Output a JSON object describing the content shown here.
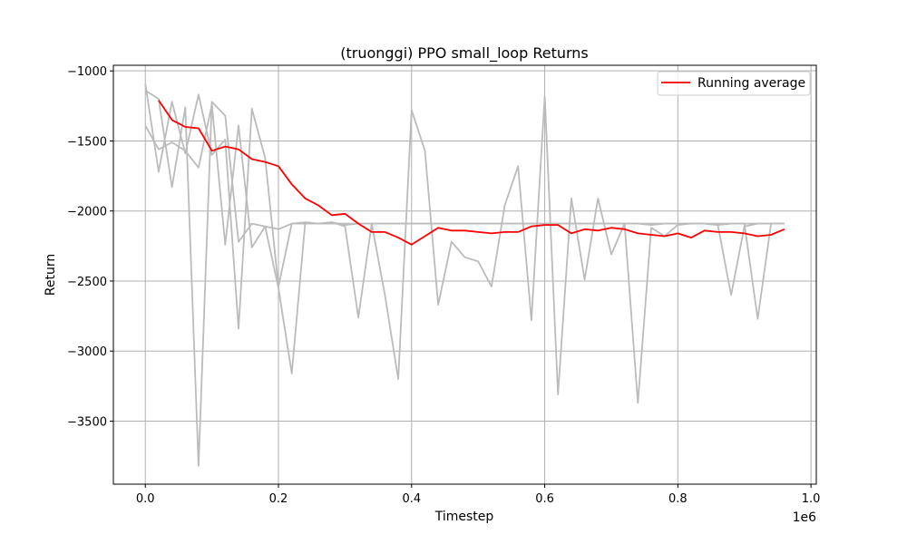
{
  "chart_data": {
    "type": "line",
    "title": "(truonggi) PPO small_loop Returns",
    "xlabel": "Timestep",
    "ylabel": "Return",
    "x_offset_label": "1e6",
    "xlim": [
      -0.048,
      1.008
    ],
    "ylim": [
      -3950,
      -960
    ],
    "xticks": [
      0.0,
      0.2,
      0.4,
      0.6,
      0.8,
      1.0
    ],
    "xtick_labels": [
      "0.0",
      "0.2",
      "0.4",
      "0.6",
      "0.8",
      "1.0"
    ],
    "yticks": [
      -1000,
      -1500,
      -2000,
      -2500,
      -3000,
      -3500
    ],
    "ytick_labels": [
      "−1000",
      "−1500",
      "−2000",
      "−2500",
      "−3000",
      "−3500"
    ],
    "grid": true,
    "legend_position": "top-right",
    "colors": {
      "raw": "#bbbbbb",
      "average": "#ff0000",
      "grid": "#b0b0b0"
    },
    "raw_x": [
      0.0,
      0.02,
      0.04,
      0.06,
      0.08,
      0.1,
      0.12,
      0.14,
      0.16,
      0.18,
      0.2,
      0.22,
      0.24,
      0.26,
      0.28,
      0.3,
      0.32,
      0.34,
      0.36,
      0.38,
      0.4,
      0.42,
      0.44,
      0.46,
      0.48,
      0.5,
      0.52,
      0.54,
      0.56,
      0.58,
      0.6,
      0.62,
      0.64,
      0.66,
      0.68,
      0.7,
      0.72,
      0.74,
      0.76,
      0.78,
      0.8,
      0.82,
      0.84,
      0.86,
      0.88,
      0.9,
      0.92,
      0.94,
      0.96
    ],
    "raw_series": [
      {
        "values": [
          -1090,
          -1720,
          -1220,
          -1590,
          -1170,
          -1600,
          -1490,
          -2840,
          -1270,
          -1620,
          -2540,
          -2090,
          -2090,
          -2090,
          -2080,
          -2100,
          -2090,
          -2090,
          -2090,
          -2090,
          -2090,
          -2090,
          -2090,
          -2090,
          -2090,
          -2090,
          -2090,
          -2090,
          -2090,
          -2090,
          -2090,
          -2090,
          -2090,
          -2090,
          -2090,
          -2090,
          -2090,
          -2090,
          -2090,
          -2090,
          -2090,
          -2090,
          -2090,
          -2090,
          -2090,
          -2090,
          -2090,
          -2090,
          -2090
        ]
      },
      {
        "values": [
          -1140,
          -1200,
          -1830,
          -1260,
          -3820,
          -1220,
          -1320,
          -2220,
          -2090,
          -2110,
          -2130,
          -2090,
          -2080,
          -2090,
          -2080,
          -2110,
          -2760,
          -2090,
          -2600,
          -3200,
          -1280,
          -1570,
          -2670,
          -2220,
          -2330,
          -2360,
          -2540,
          -1960,
          -1680,
          -2780,
          -1180,
          -3310,
          -1910,
          -2490,
          -1910,
          -2310,
          -2090,
          -2090,
          -2100,
          -2090,
          -2090,
          -2090,
          -2090,
          -2100,
          -2090,
          -2090,
          -2770,
          -2090,
          -2090
        ]
      },
      {
        "values": [
          -1390,
          -1560,
          -1510,
          -1570,
          -1690,
          -1240,
          -2240,
          -1390,
          -2260,
          -2110,
          -2550,
          -3160,
          -2090,
          -2090,
          -2090,
          -2090,
          -2090,
          -2090,
          -2090,
          -2090,
          -2090,
          -2090,
          -2090,
          -2090,
          -2090,
          -2090,
          -2090,
          -2090,
          -2090,
          -2090,
          -2090,
          -2090,
          -2090,
          -2090,
          -2090,
          -2090,
          -2090,
          -3370,
          -2120,
          -2180,
          -2100,
          -2090,
          -2090,
          -2100,
          -2600,
          -2110,
          -2090,
          -2090,
          -2090
        ]
      }
    ],
    "series": [
      {
        "name": "Running average",
        "x": [
          0.02,
          0.04,
          0.06,
          0.08,
          0.1,
          0.12,
          0.14,
          0.16,
          0.18,
          0.2,
          0.22,
          0.24,
          0.26,
          0.28,
          0.3,
          0.32,
          0.34,
          0.36,
          0.38,
          0.4,
          0.42,
          0.44,
          0.46,
          0.48,
          0.5,
          0.52,
          0.54,
          0.56,
          0.58,
          0.6,
          0.62,
          0.64,
          0.66,
          0.68,
          0.7,
          0.72,
          0.74,
          0.76,
          0.78,
          0.8,
          0.82,
          0.84,
          0.86,
          0.88,
          0.9,
          0.92,
          0.94,
          0.96
        ],
        "values": [
          -1210,
          -1350,
          -1400,
          -1410,
          -1570,
          -1540,
          -1560,
          -1630,
          -1650,
          -1680,
          -1810,
          -1910,
          -1960,
          -2030,
          -2020,
          -2090,
          -2150,
          -2150,
          -2190,
          -2240,
          -2180,
          -2120,
          -2140,
          -2140,
          -2150,
          -2160,
          -2150,
          -2150,
          -2110,
          -2100,
          -2100,
          -2160,
          -2130,
          -2140,
          -2120,
          -2130,
          -2160,
          -2170,
          -2180,
          -2160,
          -2190,
          -2140,
          -2150,
          -2150,
          -2160,
          -2180,
          -2170,
          -2130
        ]
      }
    ]
  }
}
